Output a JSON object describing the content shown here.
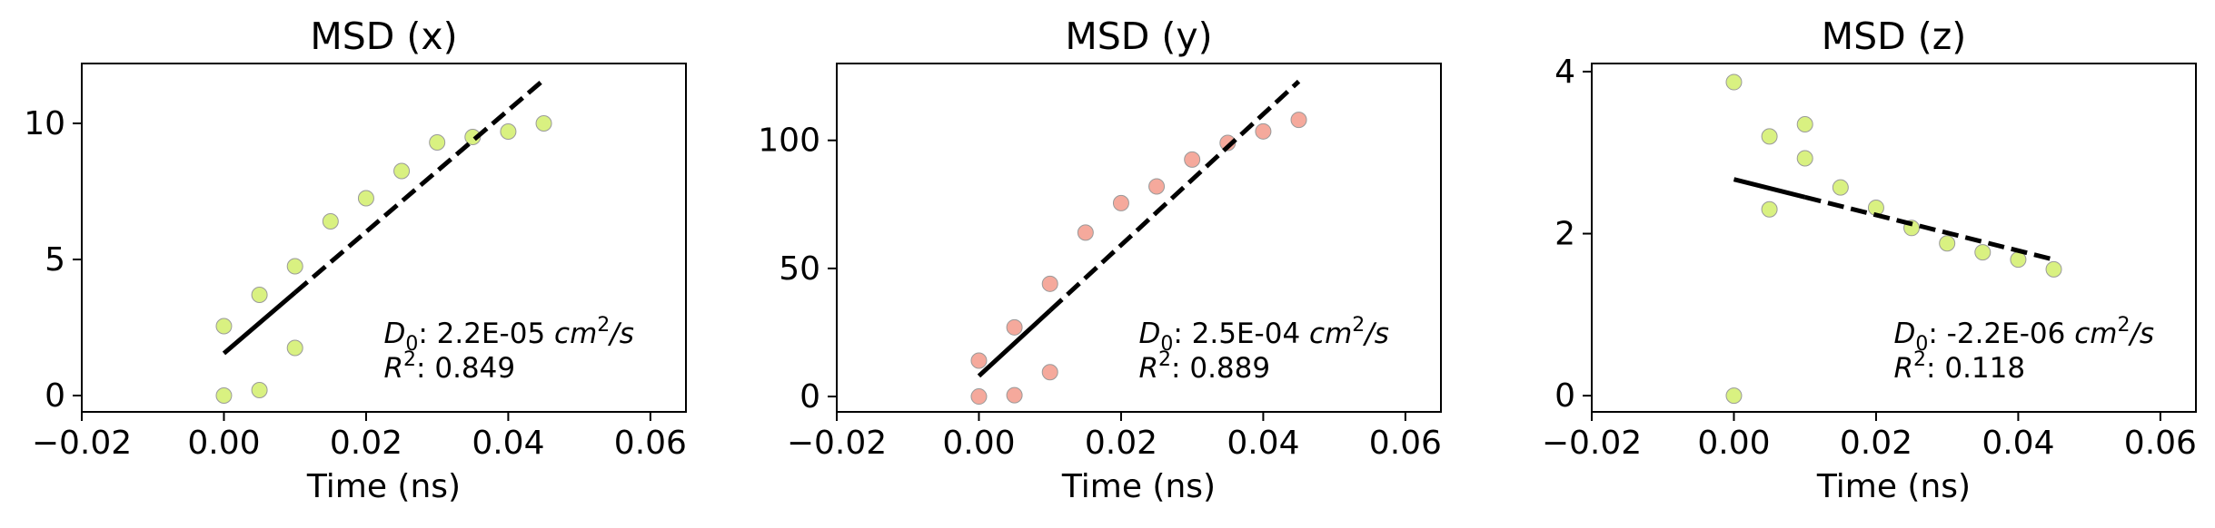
{
  "chart_data": [
    {
      "type": "scatter",
      "title": "MSD (x)",
      "xlabel": "Time (ns)",
      "ylabel": "",
      "xlim": [
        -0.02,
        0.065
      ],
      "ylim": [
        -0.6,
        12.2
      ],
      "xticks": [
        -0.02,
        0.0,
        0.02,
        0.04,
        0.06
      ],
      "xtick_labels": [
        "−0.02",
        "0.00",
        "0.02",
        "0.04",
        "0.06"
      ],
      "yticks": [
        0,
        5,
        10
      ],
      "ytick_labels": [
        "0",
        "5",
        "10"
      ],
      "series": [
        {
          "marker_color": "#d7f07a",
          "x": [
            0.0,
            0.0,
            0.005,
            0.005,
            0.01,
            0.01,
            0.015,
            0.02,
            0.025,
            0.03,
            0.035,
            0.04,
            0.045
          ],
          "y": [
            0.0,
            2.55,
            3.7,
            0.2,
            4.75,
            1.75,
            6.4,
            7.25,
            8.25,
            9.3,
            9.5,
            9.7,
            10.0
          ]
        }
      ],
      "fit": {
        "x": [
          0.0,
          0.045
        ],
        "y": [
          1.55,
          11.6
        ],
        "solid_until": 0.01
      },
      "annotation": {
        "d0_symbol": "D",
        "d0_sub": "0",
        "d0_value": ": 2.2E-05 ",
        "d0_unit": "cm",
        "d0_unit_sup": "2",
        "d0_unit_tail": "/s",
        "r2_symbol": "R",
        "r2_sup": "2",
        "r2_value": ": 0.849"
      }
    },
    {
      "type": "scatter",
      "title": "MSD (y)",
      "xlabel": "Time (ns)",
      "ylabel": "",
      "xlim": [
        -0.02,
        0.065
      ],
      "ylim": [
        -6,
        130
      ],
      "xticks": [
        -0.02,
        0.0,
        0.02,
        0.04,
        0.06
      ],
      "xtick_labels": [
        "−0.02",
        "0.00",
        "0.02",
        "0.04",
        "0.06"
      ],
      "yticks": [
        0,
        50,
        100
      ],
      "ytick_labels": [
        "0",
        "50",
        "100"
      ],
      "series": [
        {
          "marker_color": "#f4a497",
          "x": [
            0.0,
            0.0,
            0.005,
            0.005,
            0.01,
            0.01,
            0.015,
            0.02,
            0.025,
            0.03,
            0.035,
            0.04,
            0.045
          ],
          "y": [
            0.0,
            14.0,
            27.0,
            0.5,
            44.0,
            9.5,
            64.0,
            75.5,
            82.0,
            92.5,
            99.0,
            103.5,
            108.0
          ]
        }
      ],
      "fit": {
        "x": [
          0.0,
          0.045
        ],
        "y": [
          8.0,
          123.0
        ],
        "solid_until": 0.01
      },
      "annotation": {
        "d0_symbol": "D",
        "d0_sub": "0",
        "d0_value": ": 2.5E-04 ",
        "d0_unit": "cm",
        "d0_unit_sup": "2",
        "d0_unit_tail": "/s",
        "r2_symbol": "R",
        "r2_sup": "2",
        "r2_value": ": 0.889"
      }
    },
    {
      "type": "scatter",
      "title": "MSD (z)",
      "xlabel": "Time (ns)",
      "ylabel": "",
      "xlim": [
        -0.02,
        0.065
      ],
      "ylim": [
        -0.2,
        4.1
      ],
      "xticks": [
        -0.02,
        0.0,
        0.02,
        0.04,
        0.06
      ],
      "xtick_labels": [
        "−0.02",
        "0.00",
        "0.02",
        "0.04",
        "0.06"
      ],
      "yticks": [
        0,
        2,
        4
      ],
      "ytick_labels": [
        "0",
        "2",
        "4"
      ],
      "series": [
        {
          "marker_color": "#d7f07a",
          "x": [
            0.0,
            0.0,
            0.005,
            0.005,
            0.01,
            0.01,
            0.015,
            0.02,
            0.025,
            0.03,
            0.035,
            0.04,
            0.045
          ],
          "y": [
            3.87,
            0.0,
            3.2,
            2.3,
            3.35,
            2.93,
            2.57,
            2.32,
            2.07,
            1.88,
            1.77,
            1.68,
            1.56
          ]
        }
      ],
      "fit": {
        "x": [
          0.0,
          0.045
        ],
        "y": [
          2.67,
          1.68
        ],
        "solid_until": 0.01
      },
      "annotation": {
        "d0_symbol": "D",
        "d0_sub": "0",
        "d0_value": ": -2.2E-06 ",
        "d0_unit": "cm",
        "d0_unit_sup": "2",
        "d0_unit_tail": "/s",
        "r2_symbol": "R",
        "r2_sup": "2",
        "r2_value": ": 0.118"
      }
    }
  ]
}
